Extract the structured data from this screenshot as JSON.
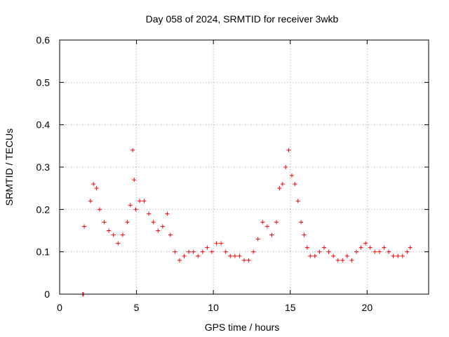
{
  "chart_data": {
    "type": "scatter",
    "title": "Day 058 of 2024, SRMTID for receiver 3wkb",
    "xlabel": "GPS time / hours",
    "ylabel": "SRMTID / TECUs",
    "xlim": [
      0,
      24
    ],
    "ylim": [
      0,
      0.6
    ],
    "xticks": [
      0,
      5,
      10,
      15,
      20
    ],
    "xtick_labels": [
      "0",
      "5",
      "10",
      "15",
      "20"
    ],
    "yticks": [
      0,
      0.1,
      0.2,
      0.3,
      0.4,
      0.5,
      0.6
    ],
    "ytick_labels": [
      "0",
      "0.1",
      "0.2",
      "0.3",
      "0.4",
      "0.5",
      "0.6"
    ],
    "grid": true,
    "marker": "+",
    "color": "#ff0000",
    "series": [
      {
        "name": "SRMTID",
        "segments": [
          {
            "x": [
              1.5,
              1.55
            ],
            "y": [
              0.0,
              0.0
            ]
          },
          {
            "x": [
              1.6,
              2.0,
              2.2,
              2.4,
              2.6,
              2.9,
              3.2,
              3.5,
              3.8,
              4.1,
              4.4,
              4.6,
              4.75,
              4.85,
              4.95,
              5.2,
              5.5,
              5.8,
              6.1,
              6.4,
              6.7,
              7.0,
              7.2,
              7.5,
              7.8,
              8.1,
              8.4,
              8.7,
              9.0,
              9.3,
              9.6,
              9.9,
              10.2,
              10.5,
              10.8,
              11.1,
              11.4,
              11.7,
              12.0,
              12.3,
              12.6,
              12.9,
              13.2,
              13.5,
              13.8,
              14.1,
              14.3,
              14.5,
              14.7,
              14.9,
              15.1,
              15.3,
              15.5,
              15.7,
              15.9,
              16.1,
              16.3,
              16.6,
              16.9,
              17.2,
              17.5,
              17.8,
              18.1,
              18.4,
              18.7,
              19.0,
              19.3,
              19.6,
              19.9,
              20.2,
              20.5,
              20.8,
              21.1,
              21.4,
              21.7,
              22.0,
              22.3,
              22.6,
              22.8
            ],
            "y": [
              0.16,
              0.22,
              0.26,
              0.25,
              0.2,
              0.17,
              0.15,
              0.14,
              0.12,
              0.14,
              0.17,
              0.21,
              0.34,
              0.27,
              0.2,
              0.22,
              0.22,
              0.19,
              0.17,
              0.15,
              0.16,
              0.19,
              0.14,
              0.1,
              0.08,
              0.09,
              0.1,
              0.1,
              0.09,
              0.1,
              0.11,
              0.1,
              0.12,
              0.12,
              0.1,
              0.09,
              0.09,
              0.09,
              0.08,
              0.08,
              0.1,
              0.13,
              0.17,
              0.16,
              0.14,
              0.17,
              0.25,
              0.26,
              0.3,
              0.34,
              0.28,
              0.26,
              0.22,
              0.17,
              0.14,
              0.11,
              0.09,
              0.09,
              0.1,
              0.11,
              0.1,
              0.09,
              0.08,
              0.08,
              0.09,
              0.08,
              0.1,
              0.11,
              0.12,
              0.11,
              0.1,
              0.1,
              0.11,
              0.1,
              0.09,
              0.09,
              0.09,
              0.1,
              0.11
            ]
          }
        ]
      }
    ]
  }
}
